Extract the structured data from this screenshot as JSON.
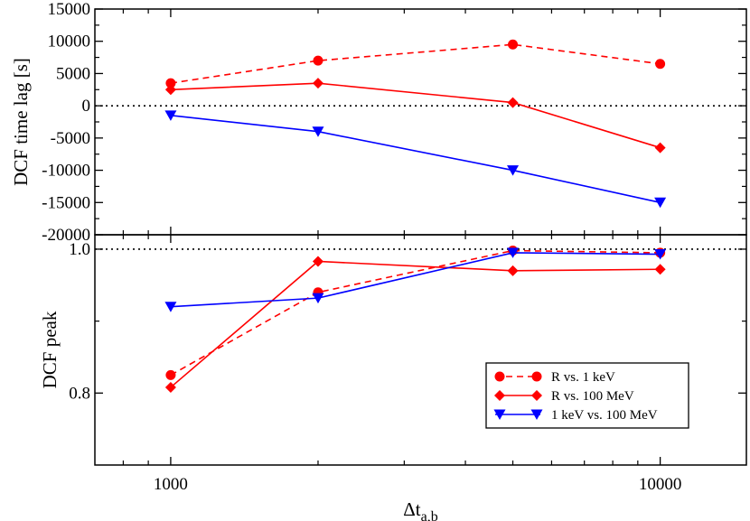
{
  "chart_data": [
    {
      "type": "line",
      "panel": "top",
      "ylabel": "DCF time lag [s]",
      "xscale": "log",
      "xlim": [
        700,
        15000
      ],
      "ylim": [
        -20000,
        15000
      ],
      "yticks": [
        15000,
        10000,
        5000,
        0,
        -5000,
        -10000,
        -15000,
        -20000
      ],
      "ytick_labels": [
        "15000",
        "10000",
        "5000",
        "0",
        "-5000",
        "-10000",
        "-15000",
        "-20000"
      ],
      "reference_line": 0,
      "x": [
        1000,
        2000,
        5000,
        10000
      ],
      "series": [
        {
          "name": "R vs. 1 keV",
          "values": [
            3500,
            7000,
            9500,
            6500
          ],
          "color": "#ff0000",
          "dash": "dashed",
          "marker": "circle"
        },
        {
          "name": "R vs. 100 MeV",
          "values": [
            2500,
            3500,
            500,
            -6500
          ],
          "color": "#ff0000",
          "dash": "solid",
          "marker": "diamond"
        },
        {
          "name": "1 keV vs. 100 MeV",
          "values": [
            -1500,
            -4000,
            -10000,
            -15000
          ],
          "color": "#0000ff",
          "dash": "solid",
          "marker": "triangle-down"
        }
      ]
    },
    {
      "type": "line",
      "panel": "bottom",
      "ylabel": "DCF peak",
      "xlabel_main": "Δt",
      "xlabel_sub": "a,b",
      "xscale": "log",
      "xlim": [
        700,
        15000
      ],
      "ylim": [
        0.7,
        1.02
      ],
      "yticks": [
        1.0,
        0.8
      ],
      "ytick_labels": [
        "1.0",
        "0.8"
      ],
      "xticks": [
        1000,
        10000
      ],
      "xtick_labels": [
        "1000",
        "10000"
      ],
      "reference_line": 1.0,
      "legend_position": "lower-right",
      "x": [
        1000,
        2000,
        5000,
        10000
      ],
      "series": [
        {
          "name": "R vs. 1 keV",
          "values": [
            0.825,
            0.94,
            0.998,
            0.995
          ],
          "color": "#ff0000",
          "dash": "dashed",
          "marker": "circle"
        },
        {
          "name": "R vs. 100 MeV",
          "values": [
            0.808,
            0.983,
            0.97,
            0.972
          ],
          "color": "#ff0000",
          "dash": "solid",
          "marker": "diamond"
        },
        {
          "name": "1 keV vs. 100 MeV",
          "values": [
            0.92,
            0.932,
            0.995,
            0.993
          ],
          "color": "#0000ff",
          "dash": "solid",
          "marker": "triangle-down"
        }
      ]
    }
  ]
}
